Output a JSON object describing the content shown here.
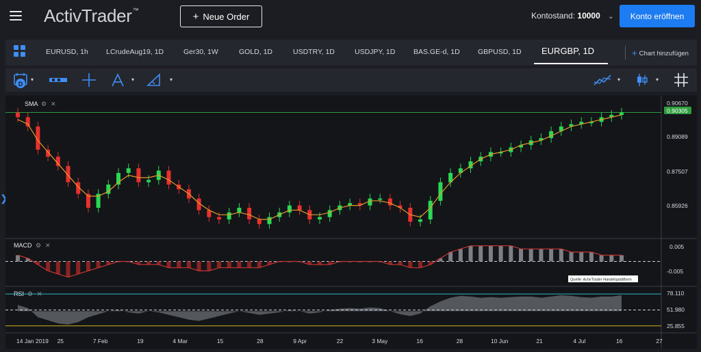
{
  "header": {
    "logo": "ActivTrader",
    "logo_tm": "™",
    "order_button": "Neue Order",
    "account_label": "Kontostand:",
    "account_value": "10000",
    "open_account_button": "Konto eröffnen"
  },
  "tabs": [
    {
      "label": "EURUSD, 1h"
    },
    {
      "label": "LCrudeAug19, 1D"
    },
    {
      "label": "Ger30, 1W"
    },
    {
      "label": "GOLD, 1D"
    },
    {
      "label": "USDTRY, 1D"
    },
    {
      "label": "USDJPY, 1D"
    },
    {
      "label": "BAS.GE-d, 1D"
    },
    {
      "label": "GBPUSD, 1D"
    },
    {
      "label": "EURGBP, 1D"
    }
  ],
  "active_tab": "EURGBP, 1D",
  "add_chart": "Chart hinzufügen",
  "toolbar_icons": [
    "calendar-icon",
    "bar-style-icon",
    "crosshair-icon",
    "drawing-pen-icon",
    "ruler-icon",
    "indicator-icon",
    "candle-type-icon",
    "grid-icon"
  ],
  "panels": {
    "main": {
      "label": "SMA"
    },
    "macd": {
      "label": "MACD"
    },
    "rsi": {
      "label": "RSI"
    }
  },
  "price_axis": [
    "0.90670",
    "0.89089",
    "0.87507",
    "0.85926"
  ],
  "current_price": "0.90305",
  "macd_axis": [
    "0.005",
    "-0.005"
  ],
  "rsi_axis": [
    "78.110",
    "51.980",
    "25.855"
  ],
  "source_note": "Quelle: ActivTrader Handelsplattform",
  "x_axis": [
    "14 Jan 2019",
    "25",
    "7 Feb",
    "19",
    "4 Mar",
    "15",
    "28",
    "9 Apr",
    "22",
    "3 May",
    "16",
    "28",
    "10 Jun",
    "21",
    "4 Jul",
    "16",
    "27"
  ],
  "colors": {
    "up": "#2bd853",
    "down": "#e8302c",
    "sma": "#e39a2b",
    "accent": "#1e7cf2",
    "current_price_bg": "#2e9d3c",
    "macd_line": "#c93535",
    "rsi_band": "#2fb7c9",
    "rsi_low": "#d4b21c"
  },
  "chart_data": {
    "type": "candlestick",
    "title": "EURGBP, 1D",
    "series": [
      {
        "name": "EURGBP",
        "values": [
          0.901,
          0.897,
          0.887,
          0.884,
          0.88,
          0.873,
          0.868,
          0.862,
          0.868,
          0.872,
          0.877,
          0.879,
          0.873,
          0.874,
          0.878,
          0.872,
          0.87,
          0.866,
          0.861,
          0.858,
          0.857,
          0.86,
          0.862,
          0.857,
          0.855,
          0.858,
          0.86,
          0.863,
          0.861,
          0.857,
          0.858,
          0.861,
          0.863,
          0.864,
          0.863,
          0.866,
          0.866,
          0.863,
          0.862,
          0.856,
          0.857,
          0.865,
          0.873,
          0.877,
          0.879,
          0.882,
          0.884,
          0.886,
          0.886,
          0.888,
          0.889,
          0.891,
          0.892,
          0.895,
          0.897,
          0.898,
          0.899,
          0.899,
          0.901,
          0.902,
          0.903
        ]
      },
      {
        "name": "SMA",
        "values": [
          0.9,
          0.898,
          0.891,
          0.886,
          0.881,
          0.876,
          0.871,
          0.867,
          0.867,
          0.869,
          0.873,
          0.876,
          0.875,
          0.875,
          0.876,
          0.874,
          0.871,
          0.868,
          0.864,
          0.861,
          0.859,
          0.859,
          0.86,
          0.859,
          0.857,
          0.857,
          0.859,
          0.861,
          0.861,
          0.859,
          0.859,
          0.86,
          0.862,
          0.863,
          0.863,
          0.865,
          0.865,
          0.864,
          0.862,
          0.859,
          0.858,
          0.862,
          0.868,
          0.873,
          0.877,
          0.88,
          0.883,
          0.885,
          0.886,
          0.887,
          0.889,
          0.89,
          0.891,
          0.893,
          0.895,
          0.897,
          0.898,
          0.899,
          0.9,
          0.901,
          0.902
        ]
      }
    ],
    "macd": {
      "range": [
        -0.006,
        0.006
      ],
      "values": [
        0.002,
        0.001,
        -0.001,
        -0.003,
        -0.004,
        -0.005,
        -0.004,
        -0.003,
        -0.002,
        -0.001,
        0.0,
        0.0,
        -0.001,
        -0.001,
        -0.001,
        -0.002,
        -0.002,
        -0.002,
        -0.003,
        -0.003,
        -0.002,
        -0.002,
        -0.002,
        -0.002,
        -0.002,
        -0.001,
        0.0,
        0.0,
        0.0,
        -0.001,
        -0.001,
        -0.001,
        0.0,
        0.0,
        0.0,
        0.0,
        0.0,
        -0.001,
        -0.001,
        -0.002,
        -0.002,
        -0.001,
        0.001,
        0.003,
        0.004,
        0.005,
        0.005,
        0.005,
        0.005,
        0.005,
        0.004,
        0.004,
        0.004,
        0.004,
        0.004,
        0.003,
        0.003,
        0.003,
        0.002,
        0.002,
        0.002
      ]
    },
    "rsi": {
      "range": [
        20,
        85
      ],
      "values": [
        60,
        55,
        40,
        35,
        30,
        28,
        32,
        40,
        45,
        50,
        52,
        48,
        46,
        50,
        48,
        44,
        40,
        36,
        34,
        38,
        42,
        46,
        50,
        47,
        44,
        46,
        48,
        52,
        50,
        46,
        48,
        52,
        54,
        55,
        54,
        56,
        55,
        50,
        45,
        42,
        46,
        58,
        66,
        72,
        75,
        74,
        72,
        73,
        72,
        73,
        74,
        74,
        72,
        74,
        76,
        75,
        73,
        72,
        74,
        74,
        76
      ]
    }
  }
}
